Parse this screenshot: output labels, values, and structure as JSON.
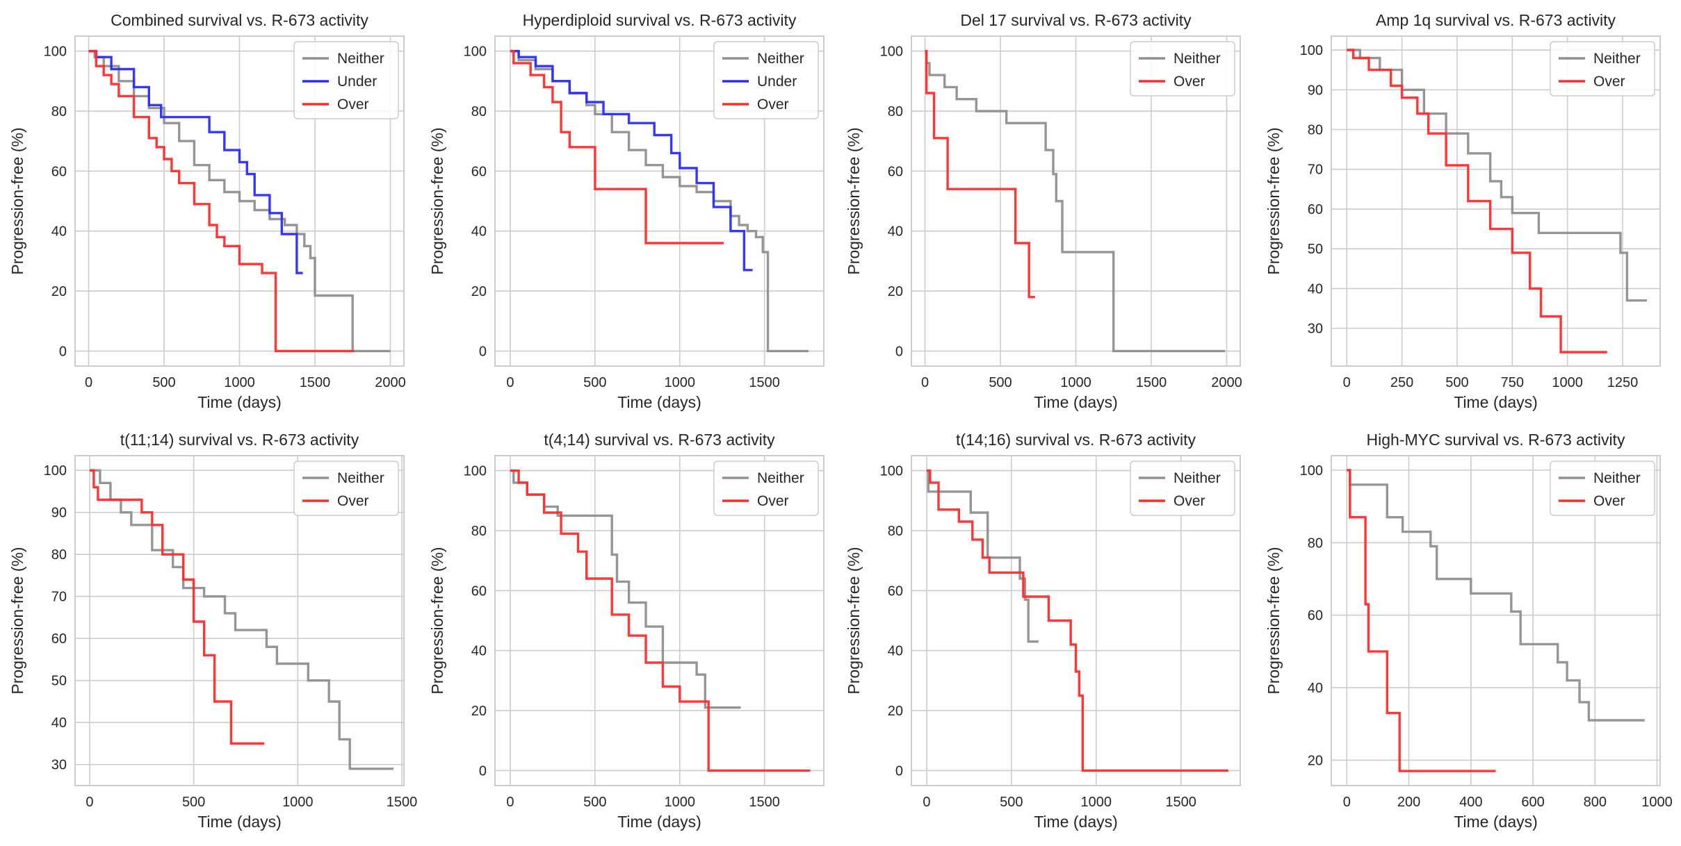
{
  "colors": {
    "Neither": "#8f8f8f",
    "Under": "#2b2bff",
    "Over": "#ff2b2b"
  },
  "chart_data": [
    {
      "type": "line",
      "step": true,
      "title": "Combined survival vs. R-673 activity",
      "xlabel": "Time (days)",
      "ylabel": "Progression-free (%)",
      "xlim": [
        -90,
        2090
      ],
      "ylim": [
        -5,
        105
      ],
      "xticks": [
        0,
        500,
        1000,
        1500,
        2000
      ],
      "yticks": [
        0,
        20,
        40,
        60,
        80,
        100
      ],
      "legend": [
        "Neither",
        "Under",
        "Over"
      ],
      "legend_position": "top-right",
      "series": [
        {
          "name": "Neither",
          "x": [
            0,
            40,
            100,
            200,
            300,
            400,
            500,
            600,
            700,
            800,
            900,
            1000,
            1100,
            1200,
            1300,
            1380,
            1430,
            1470,
            1500,
            1750,
            2000
          ],
          "y": [
            100,
            98,
            95,
            90,
            85,
            81,
            76,
            70,
            62,
            57,
            53,
            50,
            47,
            44,
            42,
            39,
            35,
            31,
            18.5,
            0,
            0
          ]
        },
        {
          "name": "Under",
          "x": [
            0,
            50,
            150,
            300,
            400,
            480,
            600,
            800,
            900,
            1000,
            1050,
            1100,
            1200,
            1280,
            1380,
            1420
          ],
          "y": [
            100,
            98,
            94,
            88,
            82,
            78,
            78,
            73,
            67,
            63,
            59,
            52,
            46,
            39,
            26,
            26
          ]
        },
        {
          "name": "Over",
          "x": [
            0,
            50,
            100,
            150,
            200,
            300,
            400,
            450,
            500,
            550,
            600,
            700,
            800,
            850,
            900,
            1000,
            1150,
            1240,
            1760
          ],
          "y": [
            100,
            95,
            92,
            89,
            85,
            78,
            71,
            68,
            64,
            60,
            56,
            49,
            42,
            38,
            35,
            29,
            26,
            0,
            0
          ]
        }
      ]
    },
    {
      "type": "line",
      "step": true,
      "title": "Hyperdiploid survival vs. R-673 activity",
      "xlabel": "Time (days)",
      "ylabel": "Progression-free (%)",
      "xlim": [
        -90,
        1850
      ],
      "ylim": [
        -5,
        105
      ],
      "xticks": [
        0,
        500,
        1000,
        1500
      ],
      "yticks": [
        0,
        20,
        40,
        60,
        80,
        100
      ],
      "legend": [
        "Neither",
        "Under",
        "Over"
      ],
      "legend_position": "top-right",
      "series": [
        {
          "name": "Neither",
          "x": [
            0,
            50,
            150,
            250,
            350,
            450,
            500,
            600,
            700,
            800,
            900,
            1000,
            1100,
            1200,
            1300,
            1350,
            1400,
            1450,
            1490,
            1520,
            1760
          ],
          "y": [
            100,
            97,
            94,
            90,
            86,
            82,
            79,
            73,
            67,
            62,
            58,
            55,
            53,
            50,
            45,
            42,
            40,
            38,
            33,
            0,
            0
          ]
        },
        {
          "name": "Under",
          "x": [
            0,
            50,
            150,
            250,
            350,
            450,
            550,
            700,
            850,
            950,
            1000,
            1100,
            1200,
            1300,
            1380,
            1430
          ],
          "y": [
            100,
            98,
            95,
            90,
            86,
            83,
            79,
            76,
            72,
            66,
            61,
            56,
            48,
            40,
            27,
            27
          ]
        },
        {
          "name": "Over",
          "x": [
            0,
            20,
            120,
            200,
            250,
            300,
            350,
            500,
            800,
            1260
          ],
          "y": [
            100,
            96,
            92,
            88,
            83,
            73,
            68,
            54,
            36,
            36
          ]
        }
      ]
    },
    {
      "type": "line",
      "step": true,
      "title": "Del 17 survival vs. R-673 activity",
      "xlabel": "Time (days)",
      "ylabel": "Progression-free (%)",
      "xlim": [
        -90,
        2090
      ],
      "ylim": [
        -5,
        105
      ],
      "xticks": [
        0,
        500,
        1000,
        1500,
        2000
      ],
      "yticks": [
        0,
        20,
        40,
        60,
        80,
        100
      ],
      "legend": [
        "Neither",
        "Over"
      ],
      "legend_position": "top-right",
      "series": [
        {
          "name": "Neither",
          "x": [
            0,
            10,
            30,
            130,
            210,
            340,
            540,
            800,
            850,
            870,
            910,
            1250,
            1990
          ],
          "y": [
            100,
            96,
            92,
            88,
            84,
            80,
            76,
            67,
            59,
            50,
            33,
            0,
            0
          ]
        },
        {
          "name": "Over",
          "x": [
            0,
            10,
            60,
            150,
            600,
            690,
            730
          ],
          "y": [
            100,
            86,
            71,
            54,
            36,
            18,
            18
          ]
        }
      ]
    },
    {
      "type": "line",
      "step": true,
      "title": "Amp 1q survival vs. R-673 activity",
      "xlabel": "Time (days)",
      "ylabel": "Progression-free (%)",
      "xlim": [
        -70,
        1420
      ],
      "ylim": [
        20.5,
        103.5
      ],
      "xticks": [
        0,
        250,
        500,
        750,
        1000,
        1250
      ],
      "yticks": [
        30,
        40,
        50,
        60,
        70,
        80,
        90,
        100
      ],
      "legend": [
        "Neither",
        "Over"
      ],
      "legend_position": "top-right",
      "series": [
        {
          "name": "Neither",
          "x": [
            0,
            60,
            150,
            250,
            350,
            450,
            550,
            650,
            700,
            750,
            870,
            1240,
            1270,
            1360
          ],
          "y": [
            100,
            98,
            95,
            90,
            84,
            79,
            74,
            67,
            63,
            59,
            54,
            49,
            37,
            37
          ]
        },
        {
          "name": "Over",
          "x": [
            0,
            30,
            100,
            200,
            250,
            320,
            370,
            450,
            550,
            650,
            750,
            830,
            880,
            970,
            1180
          ],
          "y": [
            100,
            98,
            95,
            91,
            88,
            84,
            79,
            71,
            62,
            55,
            49,
            40,
            33,
            24,
            24
          ]
        }
      ]
    },
    {
      "type": "line",
      "step": true,
      "title": "t(11;14) survival vs. R-673 activity",
      "xlabel": "Time (days)",
      "ylabel": "Progression-free (%)",
      "xlim": [
        -70,
        1510
      ],
      "ylim": [
        25,
        103.5
      ],
      "xticks": [
        0,
        500,
        1000,
        1500
      ],
      "yticks": [
        30,
        40,
        50,
        60,
        70,
        80,
        90,
        100
      ],
      "legend": [
        "Neither",
        "Over"
      ],
      "legend_position": "top-right",
      "series": [
        {
          "name": "Neither",
          "x": [
            0,
            50,
            100,
            150,
            200,
            300,
            400,
            450,
            550,
            650,
            700,
            850,
            900,
            1050,
            1150,
            1200,
            1250,
            1460
          ],
          "y": [
            100,
            97,
            93,
            90,
            87,
            81,
            77,
            72,
            70,
            66,
            62,
            58,
            54,
            50,
            45,
            36,
            29,
            29
          ]
        },
        {
          "name": "Over",
          "x": [
            0,
            20,
            40,
            250,
            300,
            350,
            450,
            500,
            550,
            600,
            680,
            840
          ],
          "y": [
            100,
            96,
            93,
            90,
            87,
            80,
            74,
            64,
            56,
            45,
            35,
            35
          ]
        }
      ]
    },
    {
      "type": "line",
      "step": true,
      "title": "t(4;14) survival vs. R-673 activity",
      "xlabel": "Time (days)",
      "ylabel": "Progression-free (%)",
      "xlim": [
        -90,
        1850
      ],
      "ylim": [
        -5,
        105
      ],
      "xticks": [
        0,
        500,
        1000,
        1500
      ],
      "yticks": [
        0,
        20,
        40,
        60,
        80,
        100
      ],
      "legend": [
        "Neither",
        "Over"
      ],
      "legend_position": "top-right",
      "series": [
        {
          "name": "Neither",
          "x": [
            0,
            20,
            100,
            200,
            280,
            380,
            600,
            630,
            700,
            800,
            900,
            1100,
            1150,
            1360
          ],
          "y": [
            100,
            96,
            92,
            88,
            85,
            85,
            72,
            63,
            56,
            48,
            36,
            32,
            21,
            21
          ]
        },
        {
          "name": "Over",
          "x": [
            0,
            50,
            100,
            200,
            300,
            400,
            450,
            600,
            700,
            800,
            900,
            1000,
            1170,
            1770
          ],
          "y": [
            100,
            96,
            92,
            86,
            79,
            73,
            64,
            52,
            45,
            36,
            28,
            23,
            0,
            0
          ]
        }
      ]
    },
    {
      "type": "line",
      "step": true,
      "title": "t(14;16) survival vs. R-673 activity",
      "xlabel": "Time (days)",
      "ylabel": "Progression-free (%)",
      "xlim": [
        -90,
        1850
      ],
      "ylim": [
        -5,
        105
      ],
      "xticks": [
        0,
        500,
        1000,
        1500
      ],
      "yticks": [
        0,
        20,
        40,
        60,
        80,
        100
      ],
      "legend": [
        "Neither",
        "Over"
      ],
      "legend_position": "top-right",
      "series": [
        {
          "name": "Neither",
          "x": [
            0,
            10,
            260,
            360,
            550,
            580,
            600,
            660
          ],
          "y": [
            100,
            93,
            86,
            71,
            64,
            57,
            43,
            43
          ]
        },
        {
          "name": "Over",
          "x": [
            0,
            20,
            70,
            190,
            270,
            330,
            370,
            570,
            720,
            850,
            880,
            900,
            920,
            1780
          ],
          "y": [
            100,
            96,
            87,
            83,
            77,
            71,
            66,
            58,
            50,
            42,
            33,
            25,
            0,
            0
          ]
        }
      ]
    },
    {
      "type": "line",
      "step": true,
      "title": "High-MYC survival vs. R-673 activity",
      "xlabel": "Time (days)",
      "ylabel": "Progression-free (%)",
      "xlim": [
        -50,
        1010
      ],
      "ylim": [
        13,
        104
      ],
      "xticks": [
        0,
        200,
        400,
        600,
        800,
        1000
      ],
      "yticks": [
        20,
        40,
        60,
        80,
        100
      ],
      "legend": [
        "Neither",
        "Over"
      ],
      "legend_position": "top-right",
      "series": [
        {
          "name": "Neither",
          "x": [
            0,
            10,
            130,
            180,
            270,
            290,
            400,
            530,
            560,
            680,
            710,
            750,
            780,
            960
          ],
          "y": [
            100,
            96,
            87,
            83,
            79,
            70,
            66,
            61,
            52,
            47,
            42,
            36,
            31,
            31
          ]
        },
        {
          "name": "Over",
          "x": [
            0,
            10,
            60,
            70,
            130,
            170,
            480
          ],
          "y": [
            100,
            87,
            63,
            50,
            33,
            17,
            17
          ]
        }
      ]
    }
  ]
}
